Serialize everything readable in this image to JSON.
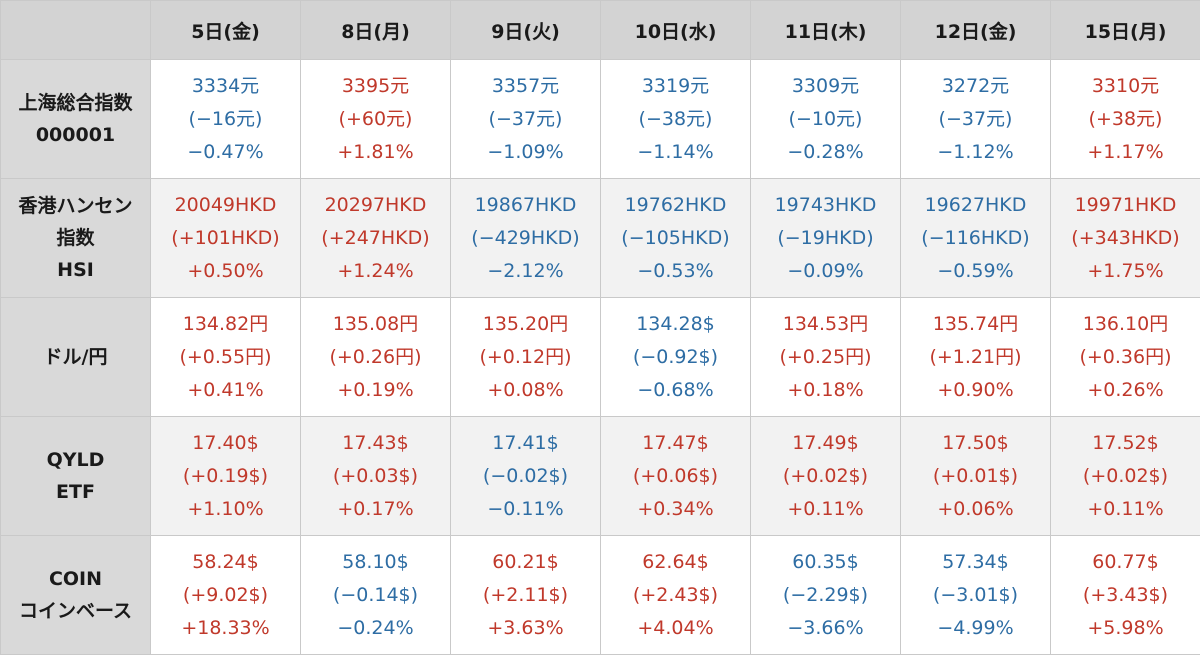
{
  "header": {
    "days": [
      "5日(金)",
      "8日(月)",
      "9日(火)",
      "10日(水)",
      "11日(木)",
      "12日(金)",
      "15日(月)"
    ]
  },
  "colors": {
    "up": "#c0392b",
    "down": "#2e6da4"
  },
  "rows": [
    {
      "label": [
        "上海総合指数",
        "000001"
      ],
      "cells": [
        {
          "dir": "down",
          "lines": [
            "3334元",
            "(−16元)",
            "−0.47%"
          ]
        },
        {
          "dir": "up",
          "lines": [
            "3395元",
            "(+60元)",
            "+1.81%"
          ]
        },
        {
          "dir": "down",
          "lines": [
            "3357元",
            "(−37元)",
            "−1.09%"
          ]
        },
        {
          "dir": "down",
          "lines": [
            "3319元",
            "(−38元)",
            "−1.14%"
          ]
        },
        {
          "dir": "down",
          "lines": [
            "3309元",
            "(−10元)",
            "−0.28%"
          ]
        },
        {
          "dir": "down",
          "lines": [
            "3272元",
            "(−37元)",
            "−1.12%"
          ]
        },
        {
          "dir": "up",
          "lines": [
            "3310元",
            "(+38元)",
            "+1.17%"
          ]
        }
      ]
    },
    {
      "label": [
        "香港ハンセン",
        "指数",
        "HSI"
      ],
      "cells": [
        {
          "dir": "up",
          "lines": [
            "20049HKD",
            "(+101HKD)",
            "+0.50%"
          ]
        },
        {
          "dir": "up",
          "lines": [
            "20297HKD",
            "(+247HKD)",
            "+1.24%"
          ]
        },
        {
          "dir": "down",
          "lines": [
            "19867HKD",
            "(−429HKD)",
            "−2.12%"
          ]
        },
        {
          "dir": "down",
          "lines": [
            "19762HKD",
            "(−105HKD)",
            "−0.53%"
          ]
        },
        {
          "dir": "down",
          "lines": [
            "19743HKD",
            "(−19HKD)",
            "−0.09%"
          ]
        },
        {
          "dir": "down",
          "lines": [
            "19627HKD",
            "(−116HKD)",
            "−0.59%"
          ]
        },
        {
          "dir": "up",
          "lines": [
            "19971HKD",
            "(+343HKD)",
            "+1.75%"
          ]
        }
      ]
    },
    {
      "label": [
        "ドル/円"
      ],
      "cells": [
        {
          "dir": "up",
          "lines": [
            "134.82円",
            "(+0.55円)",
            "+0.41%"
          ]
        },
        {
          "dir": "up",
          "lines": [
            "135.08円",
            "(+0.26円)",
            "+0.19%"
          ]
        },
        {
          "dir": "up",
          "lines": [
            "135.20円",
            "(+0.12円)",
            "+0.08%"
          ]
        },
        {
          "dir": "down",
          "lines": [
            "134.28$",
            "(−0.92$)",
            "−0.68%"
          ]
        },
        {
          "dir": "up",
          "lines": [
            "134.53円",
            "(+0.25円)",
            "+0.18%"
          ]
        },
        {
          "dir": "up",
          "lines": [
            "135.74円",
            "(+1.21円)",
            "+0.90%"
          ]
        },
        {
          "dir": "up",
          "lines": [
            "136.10円",
            "(+0.36円)",
            "+0.26%"
          ]
        }
      ]
    },
    {
      "label": [
        "QYLD",
        "ETF"
      ],
      "cells": [
        {
          "dir": "up",
          "lines": [
            "17.40$",
            "(+0.19$)",
            "+1.10%"
          ]
        },
        {
          "dir": "up",
          "lines": [
            "17.43$",
            "(+0.03$)",
            "+0.17%"
          ]
        },
        {
          "dir": "down",
          "lines": [
            "17.41$",
            "(−0.02$)",
            "−0.11%"
          ]
        },
        {
          "dir": "up",
          "lines": [
            "17.47$",
            "(+0.06$)",
            "+0.34%"
          ]
        },
        {
          "dir": "up",
          "lines": [
            "17.49$",
            "(+0.02$)",
            "+0.11%"
          ]
        },
        {
          "dir": "up",
          "lines": [
            "17.50$",
            "(+0.01$)",
            "+0.06%"
          ]
        },
        {
          "dir": "up",
          "lines": [
            "17.52$",
            "(+0.02$)",
            "+0.11%"
          ]
        }
      ]
    },
    {
      "label": [
        "COIN",
        "コインベース"
      ],
      "cells": [
        {
          "dir": "up",
          "lines": [
            "58.24$",
            "(+9.02$)",
            "+18.33%"
          ]
        },
        {
          "dir": "down",
          "lines": [
            "58.10$",
            "(−0.14$)",
            "−0.24%"
          ]
        },
        {
          "dir": "up",
          "lines": [
            "60.21$",
            "(+2.11$)",
            "+3.63%"
          ]
        },
        {
          "dir": "up",
          "lines": [
            "62.64$",
            "(+2.43$)",
            "+4.04%"
          ]
        },
        {
          "dir": "down",
          "lines": [
            "60.35$",
            "(−2.29$)",
            "−3.66%"
          ]
        },
        {
          "dir": "down",
          "lines": [
            "57.34$",
            "(−3.01$)",
            "−4.99%"
          ]
        },
        {
          "dir": "up",
          "lines": [
            "60.77$",
            "(+3.43$)",
            "+5.98%"
          ]
        }
      ]
    }
  ]
}
